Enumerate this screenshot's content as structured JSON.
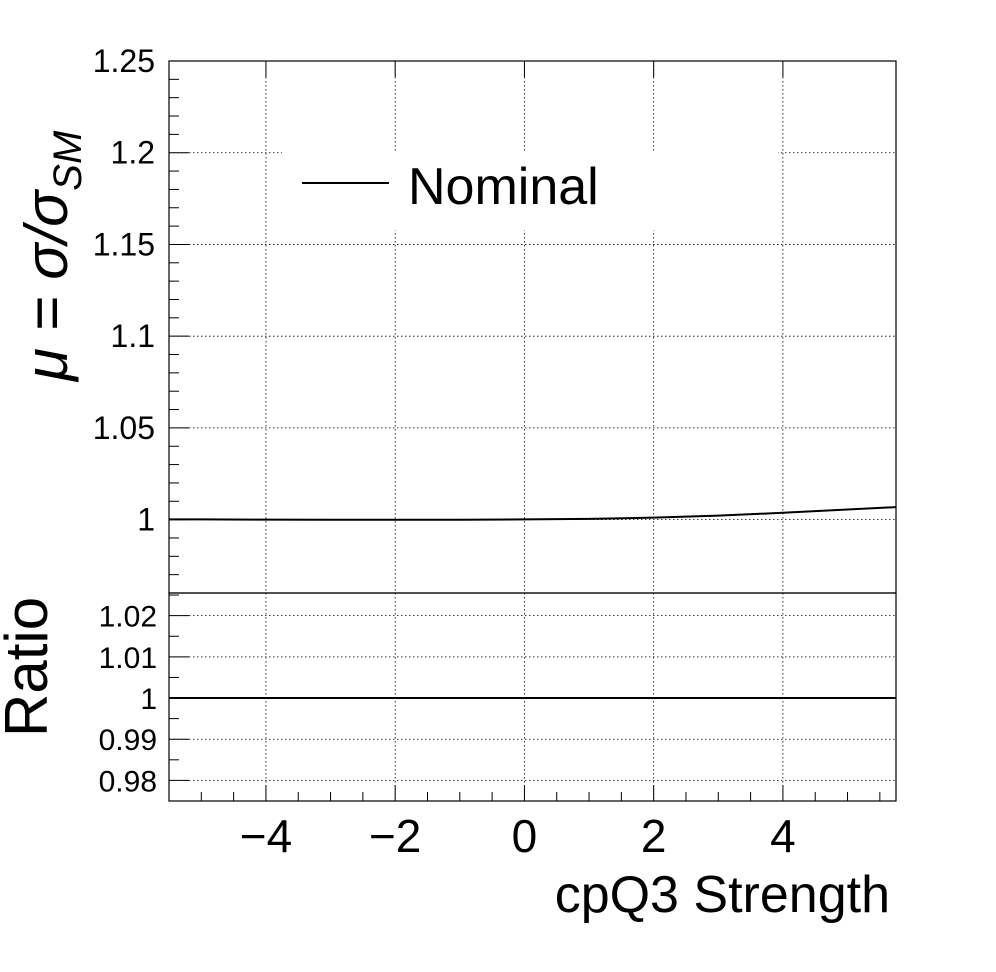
{
  "chart_data": [
    {
      "panel": "main",
      "type": "line",
      "ylabel": "μ = σ/σSM",
      "ylabel_parts": {
        "base": "μ = σ/σ",
        "sub": "SM"
      },
      "xlim": [
        -5.5,
        5.75
      ],
      "ylim": [
        0.96,
        1.25
      ],
      "grid": true,
      "legend": {
        "position": "top-left",
        "entries": [
          "Nominal"
        ]
      },
      "y_ticks": [
        {
          "v": 1,
          "label": "1"
        },
        {
          "v": 1.05,
          "label": "1.05"
        },
        {
          "v": 1.1,
          "label": "1.1"
        },
        {
          "v": 1.15,
          "label": "1.15"
        },
        {
          "v": 1.2,
          "label": "1.2"
        },
        {
          "v": 1.25,
          "label": "1.25"
        }
      ],
      "series": [
        {
          "name": "Nominal",
          "x": [
            -5.5,
            -5,
            -4,
            -3,
            -2,
            -1,
            0,
            1,
            2,
            3,
            4,
            5,
            5.75
          ],
          "values": [
            1.0001,
            1.0001,
            1.0,
            0.9999,
            0.9999,
            0.9999,
            1.0001,
            1.0004,
            1.0011,
            1.0022,
            1.0037,
            1.0055,
            1.0068
          ]
        }
      ]
    },
    {
      "panel": "ratio",
      "type": "line",
      "xlabel": "cpQ3 Strength",
      "ylabel": "Ratio",
      "xlim": [
        -5.5,
        5.75
      ],
      "ylim": [
        0.975,
        1.0255
      ],
      "grid": true,
      "x_ticks": [
        {
          "v": -4,
          "label": "−4"
        },
        {
          "v": -2,
          "label": "−2"
        },
        {
          "v": 0,
          "label": "0"
        },
        {
          "v": 2,
          "label": "2"
        },
        {
          "v": 4,
          "label": "4"
        }
      ],
      "y_ticks": [
        {
          "v": 0.98,
          "label": "0.98"
        },
        {
          "v": 0.99,
          "label": "0.99"
        },
        {
          "v": 1,
          "label": "1"
        },
        {
          "v": 1.01,
          "label": "1.01"
        },
        {
          "v": 1.02,
          "label": "1.02"
        }
      ],
      "series": [
        {
          "x": [
            -5.5,
            5.75
          ],
          "values": [
            1,
            1
          ]
        }
      ]
    }
  ]
}
